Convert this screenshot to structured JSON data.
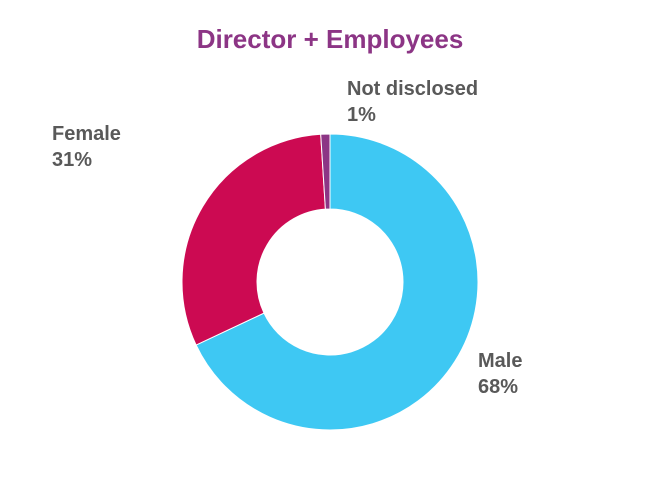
{
  "chart_data": {
    "type": "pie",
    "variant": "donut",
    "title": "Director + Employees",
    "slices": [
      {
        "label": "Male",
        "value": 68,
        "value_label": "68%",
        "color": "#3ec8f3"
      },
      {
        "label": "Female",
        "value": 31,
        "value_label": "31%",
        "color": "#cc0a52"
      },
      {
        "label": "Not disclosed",
        "value": 1,
        "value_label": "1%",
        "color": "#8c3585"
      }
    ],
    "start_angle_deg": 0,
    "direction": "clockwise",
    "legend": "none"
  },
  "colors": {
    "title": "#8c3585",
    "label_text": "#595959"
  }
}
